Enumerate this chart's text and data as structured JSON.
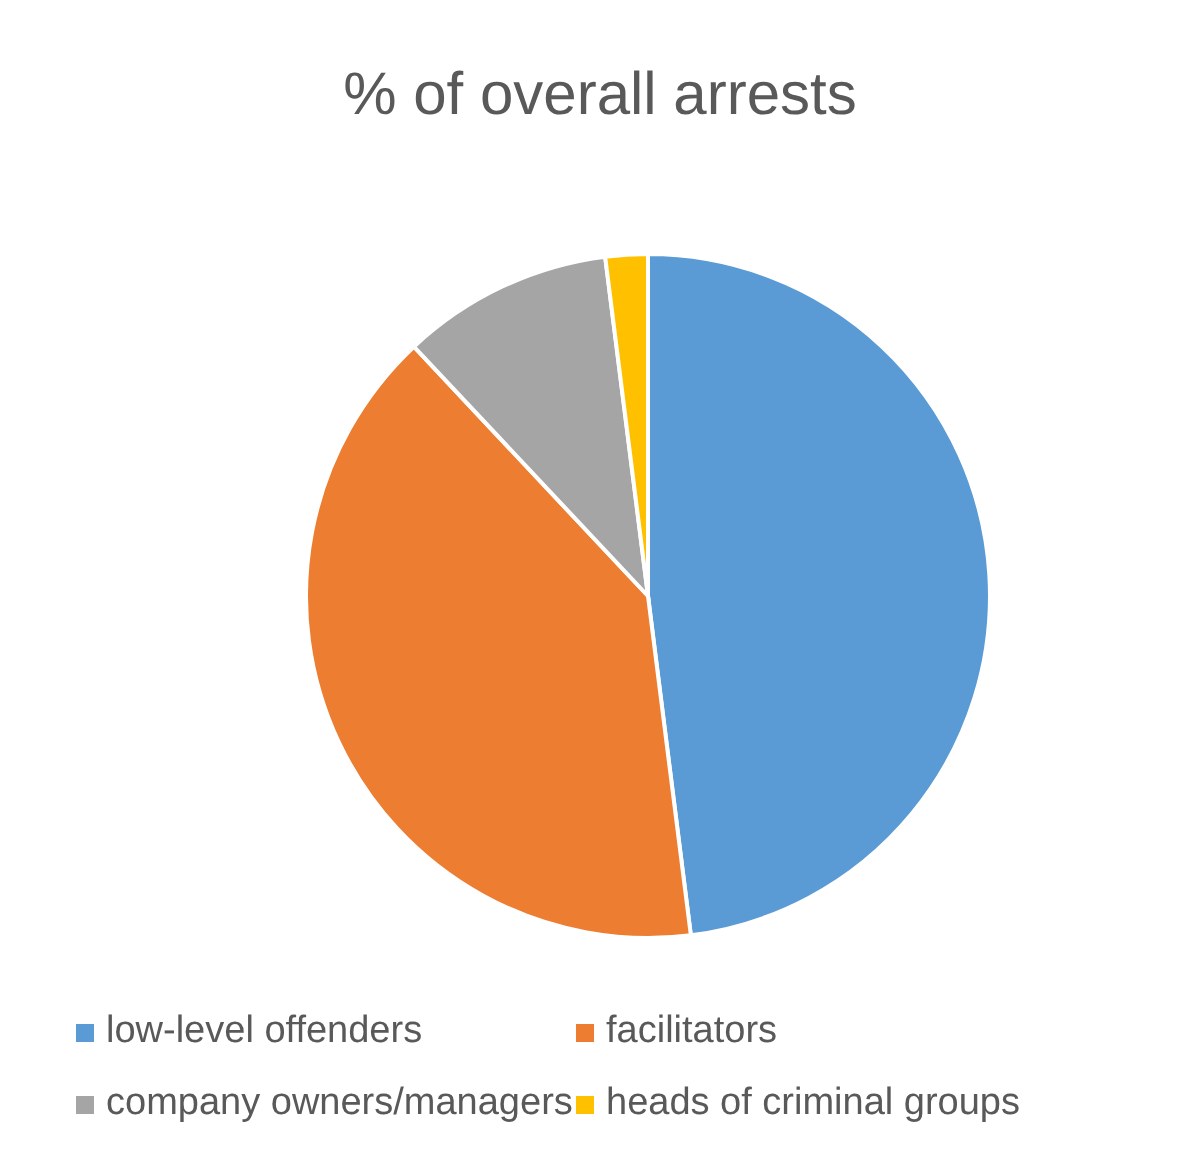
{
  "chart_data": {
    "type": "pie",
    "title": "% of overall arrests",
    "categories": [
      "low-level offenders",
      "facilitators",
      "company owners/managers",
      "heads of criminal groups"
    ],
    "values": [
      48,
      40,
      10,
      2
    ],
    "colors": [
      "#5b9bd5",
      "#ed7d31",
      "#a5a5a5",
      "#ffc000"
    ],
    "legend": "bottom"
  }
}
